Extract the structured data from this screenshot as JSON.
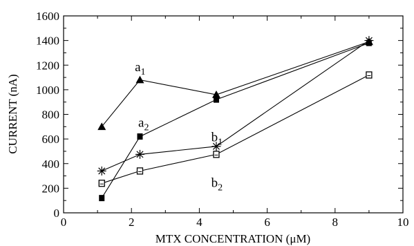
{
  "chart_data": {
    "type": "line",
    "title": "",
    "xlabel": "MTX CONCENTRATION (μM)",
    "ylabel": "CURRENT (nA)",
    "xlim": [
      0,
      10
    ],
    "ylim": [
      0,
      1600
    ],
    "xticks": [
      "0",
      "2",
      "4",
      "6",
      "8",
      "10"
    ],
    "yticks": [
      "0",
      "200",
      "400",
      "600",
      "800",
      "1000",
      "1200",
      "1400",
      "1600"
    ],
    "grid": false,
    "x": [
      1.125,
      2.25,
      4.5,
      9
    ],
    "series": [
      {
        "label": "a",
        "sub": "1",
        "marker": "triangle",
        "values": [
          700,
          1080,
          960,
          1390
        ]
      },
      {
        "label": "a",
        "sub": "2",
        "marker": "filled-square",
        "values": [
          120,
          620,
          920,
          1380
        ]
      },
      {
        "label": "b",
        "sub": "1",
        "marker": "star",
        "values": [
          340,
          475,
          540,
          1400
        ]
      },
      {
        "label": "b",
        "sub": "2",
        "marker": "open-square",
        "values": [
          240,
          340,
          475,
          1120
        ]
      }
    ],
    "annotations": [
      {
        "series": 0,
        "x": 2.1,
        "y": 1150
      },
      {
        "series": 1,
        "x": 2.2,
        "y": 700
      },
      {
        "series": 2,
        "x": 4.35,
        "y": 580
      },
      {
        "series": 3,
        "x": 4.35,
        "y": 210
      }
    ]
  }
}
